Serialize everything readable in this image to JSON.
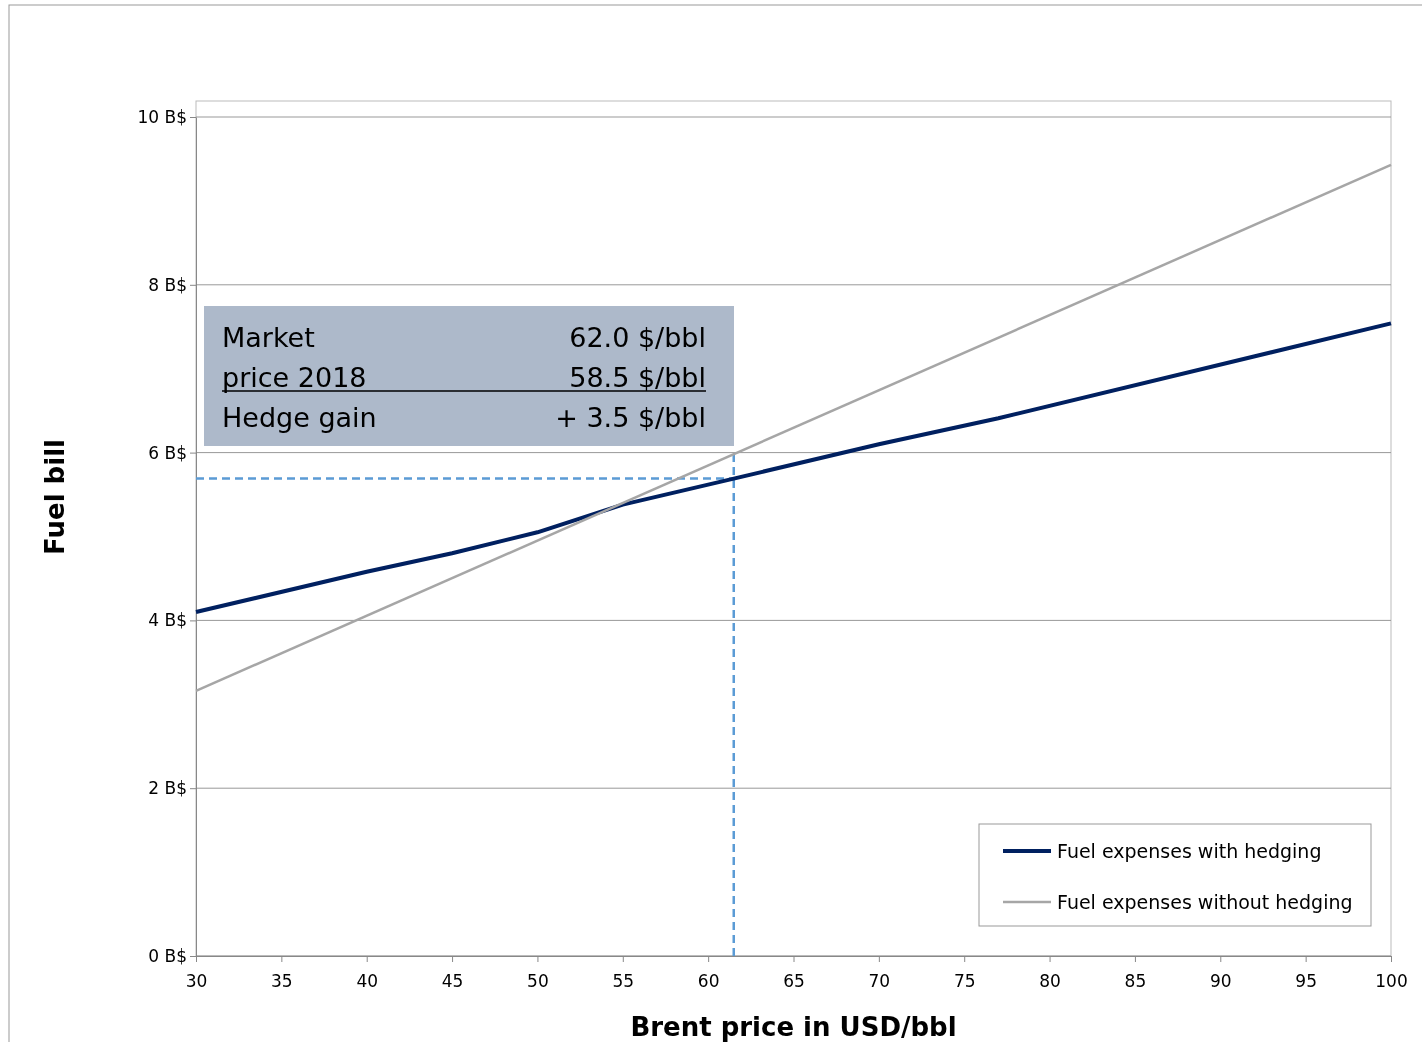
{
  "chart_data": {
    "type": "line",
    "xlabel": "Brent price in USD/bbl",
    "ylabel": "Fuel bill",
    "xlim": [
      30,
      100
    ],
    "xticks": [
      30,
      35,
      40,
      45,
      50,
      55,
      60,
      65,
      70,
      75,
      80,
      85,
      90,
      95,
      100
    ],
    "ylim": [
      0,
      10
    ],
    "yticks": [
      {
        "value": 0,
        "label": "0 B$"
      },
      {
        "value": 2,
        "label": "2 B$"
      },
      {
        "value": 4,
        "label": "4 B$"
      },
      {
        "value": 6,
        "label": "6 B$"
      },
      {
        "value": 8,
        "label": "8 B$"
      },
      {
        "value": 10,
        "label": "10 B$"
      }
    ],
    "grid": "y",
    "legend": "bottom right",
    "line_style": "solid",
    "marker": "none",
    "series": [
      {
        "name": "Fuel expenses with hedging",
        "color": "#002060",
        "x": [
          30,
          40,
          45,
          50,
          55,
          61.5,
          70,
          77,
          100
        ],
        "values": [
          4.1,
          4.58,
          4.8,
          5.05,
          5.38,
          5.69,
          6.1,
          6.41,
          7.54
        ]
      },
      {
        "name": "Fuel expenses without hedging",
        "color": "#a6a6a6",
        "x": [
          30,
          100
        ],
        "values": [
          3.16,
          9.43
        ]
      }
    ],
    "ref_lines": [
      {
        "axis": "x",
        "value": 61.5,
        "color": "#5b9bd5",
        "line_style": "dashed"
      },
      {
        "axis": "y",
        "value": 5.69,
        "color": "#5b9bd5",
        "line_style": "dashed"
      }
    ],
    "annotations": [
      "Market",
      "62.0 $/bbl",
      "price 2018",
      "58.5 $/bbl",
      "Hedge gain",
      "+  3.5 $/bbl"
    ]
  }
}
